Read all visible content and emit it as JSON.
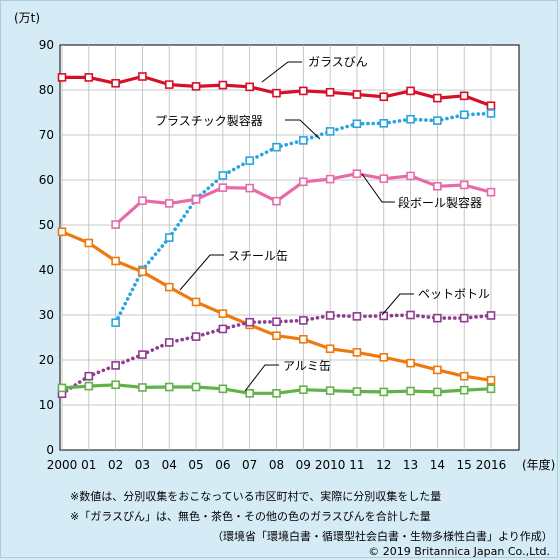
{
  "chart_data": {
    "type": "line",
    "unit_label": "(万t)",
    "x_end_label": "(年度)",
    "categories": [
      "2000",
      "01",
      "02",
      "03",
      "04",
      "05",
      "06",
      "07",
      "08",
      "09",
      "2010",
      "11",
      "12",
      "13",
      "14",
      "15",
      "2016"
    ],
    "ylim": [
      0,
      90
    ],
    "yticks": [
      0,
      10,
      20,
      30,
      40,
      50,
      60,
      70,
      80,
      90
    ],
    "grid": true,
    "series": [
      {
        "name": "ガラスびん",
        "color": "#d7102a",
        "style": "solid",
        "values": [
          82.8,
          82.8,
          81.5,
          83.0,
          81.2,
          80.8,
          81.1,
          80.7,
          79.3,
          79.8,
          79.5,
          79.0,
          78.5,
          79.8,
          78.2,
          78.7,
          76.5
        ]
      },
      {
        "name": "プラスチック製容器",
        "color": "#2aa4df",
        "style": "dotted",
        "values": [
          null,
          null,
          28.3,
          40.0,
          47.2,
          55.8,
          61.0,
          64.3,
          67.3,
          68.8,
          70.8,
          72.5,
          72.6,
          73.5,
          73.2,
          74.5,
          74.8
        ]
      },
      {
        "name": "段ボール製容器",
        "color": "#e86aa8",
        "style": "solid",
        "values": [
          null,
          null,
          50.1,
          55.4,
          54.8,
          55.7,
          58.3,
          58.2,
          55.3,
          59.6,
          60.2,
          61.4,
          60.3,
          60.9,
          58.6,
          58.9,
          57.3
        ]
      },
      {
        "name": "スチール缶",
        "color": "#ee7a0f",
        "style": "solid",
        "values": [
          48.5,
          46.0,
          42.0,
          39.6,
          36.2,
          32.9,
          30.3,
          27.8,
          25.4,
          24.6,
          22.5,
          21.7,
          20.6,
          19.3,
          17.8,
          16.4,
          15.5
        ]
      },
      {
        "name": "ペットボトル",
        "color": "#8e3c8f",
        "style": "dotted",
        "values": [
          12.5,
          16.4,
          18.8,
          21.2,
          23.9,
          25.2,
          26.9,
          28.4,
          28.5,
          28.8,
          29.9,
          29.7,
          29.8,
          30.0,
          29.3,
          29.3,
          29.9
        ]
      },
      {
        "name": "アルミ缶",
        "color": "#62b24a",
        "style": "solid",
        "values": [
          13.8,
          14.2,
          14.5,
          13.9,
          14.0,
          14.0,
          13.6,
          12.6,
          12.6,
          13.4,
          13.2,
          13.0,
          12.9,
          13.1,
          12.9,
          13.3,
          13.6
        ]
      }
    ]
  },
  "notes": [
    "※数値は、分別収集をおこなっている市区町村で、実際に分別収集をした量",
    "※「ガラスびん」は、無色・茶色・その他の色のガラスびんを合計した量",
    "（環境省「環境白書・循環型社会白書・生物多様性白書」より作成）"
  ],
  "copyright": "© 2019 Britannica Japan Co.,Ltd."
}
